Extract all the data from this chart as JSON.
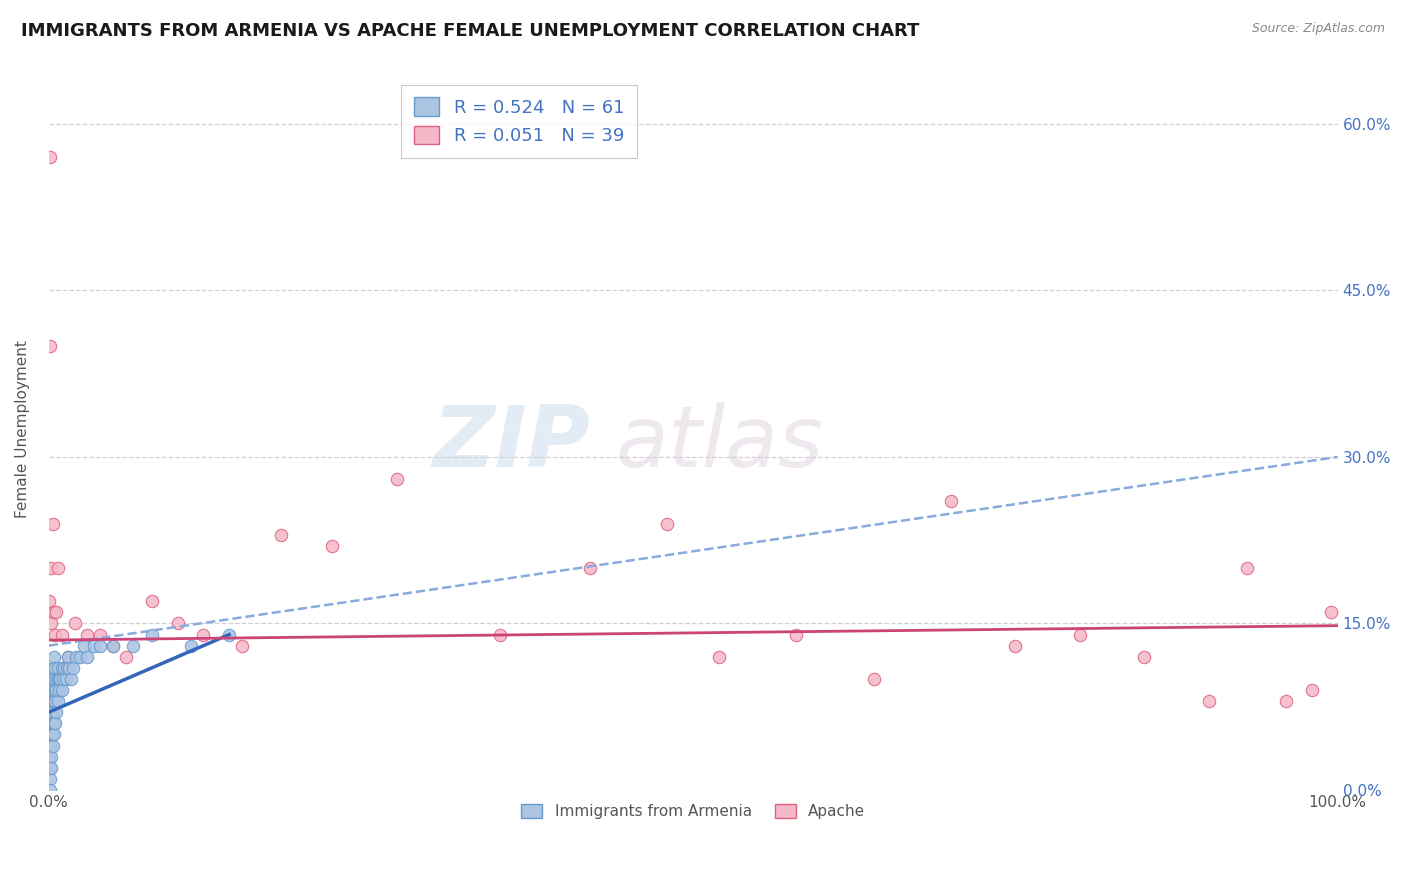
{
  "title": "IMMIGRANTS FROM ARMENIA VS APACHE FEMALE UNEMPLOYMENT CORRELATION CHART",
  "source": "Source: ZipAtlas.com",
  "ylabel": "Female Unemployment",
  "legend_r1": "R = 0.524",
  "legend_n1": "N = 61",
  "legend_r2": "R = 0.051",
  "legend_n2": "N = 39",
  "series1_color": "#aac4e2",
  "series2_color": "#f5b8c8",
  "series1_edge": "#6699cc",
  "series2_edge": "#e06080",
  "trendline1_color": "#3366bb",
  "trendline2_color": "#cc4477",
  "trendline_dashed_color": "#88aadd",
  "xlim": [
    0.0,
    1.0
  ],
  "ylim": [
    0.0,
    0.65
  ],
  "yticks": [
    0.0,
    0.15,
    0.3,
    0.45,
    0.6
  ],
  "xtick_labels": [
    "0.0%",
    "100.0%"
  ],
  "ytick_labels_right": [
    "0.0%",
    "15.0%",
    "30.0%",
    "45.0%",
    "60.0%"
  ],
  "grid_color": "#d0d0d0",
  "background_color": "#ffffff",
  "series1_x": [
    0.0,
    0.0,
    0.001,
    0.001,
    0.001,
    0.001,
    0.001,
    0.001,
    0.001,
    0.002,
    0.002,
    0.002,
    0.002,
    0.002,
    0.002,
    0.002,
    0.002,
    0.003,
    0.003,
    0.003,
    0.003,
    0.003,
    0.004,
    0.004,
    0.004,
    0.004,
    0.004,
    0.005,
    0.005,
    0.005,
    0.005,
    0.006,
    0.006,
    0.006,
    0.007,
    0.007,
    0.007,
    0.008,
    0.008,
    0.009,
    0.01,
    0.01,
    0.011,
    0.012,
    0.013,
    0.014,
    0.015,
    0.016,
    0.017,
    0.019,
    0.021,
    0.024,
    0.027,
    0.03,
    0.035,
    0.04,
    0.05,
    0.065,
    0.08,
    0.11,
    0.14
  ],
  "series1_y": [
    0.05,
    0.03,
    0.08,
    0.06,
    0.04,
    0.02,
    0.01,
    0.0,
    0.07,
    0.1,
    0.08,
    0.06,
    0.05,
    0.03,
    0.02,
    0.09,
    0.07,
    0.11,
    0.09,
    0.07,
    0.05,
    0.04,
    0.12,
    0.1,
    0.08,
    0.06,
    0.05,
    0.11,
    0.09,
    0.08,
    0.06,
    0.1,
    0.09,
    0.07,
    0.11,
    0.1,
    0.08,
    0.1,
    0.09,
    0.1,
    0.11,
    0.09,
    0.1,
    0.11,
    0.1,
    0.11,
    0.12,
    0.11,
    0.1,
    0.11,
    0.12,
    0.12,
    0.13,
    0.12,
    0.13,
    0.13,
    0.13,
    0.13,
    0.14,
    0.13,
    0.14
  ],
  "series2_x": [
    0.0,
    0.001,
    0.001,
    0.002,
    0.002,
    0.003,
    0.004,
    0.005,
    0.006,
    0.007,
    0.01,
    0.015,
    0.02,
    0.03,
    0.04,
    0.05,
    0.06,
    0.08,
    0.1,
    0.12,
    0.15,
    0.18,
    0.22,
    0.27,
    0.35,
    0.42,
    0.48,
    0.52,
    0.58,
    0.64,
    0.7,
    0.75,
    0.8,
    0.85,
    0.9,
    0.93,
    0.96,
    0.98,
    0.995
  ],
  "series2_y": [
    0.17,
    0.57,
    0.4,
    0.2,
    0.15,
    0.24,
    0.16,
    0.14,
    0.16,
    0.2,
    0.14,
    0.12,
    0.15,
    0.14,
    0.14,
    0.13,
    0.12,
    0.17,
    0.15,
    0.14,
    0.13,
    0.23,
    0.22,
    0.28,
    0.14,
    0.2,
    0.24,
    0.12,
    0.14,
    0.1,
    0.26,
    0.13,
    0.14,
    0.12,
    0.08,
    0.2,
    0.08,
    0.09,
    0.16
  ]
}
